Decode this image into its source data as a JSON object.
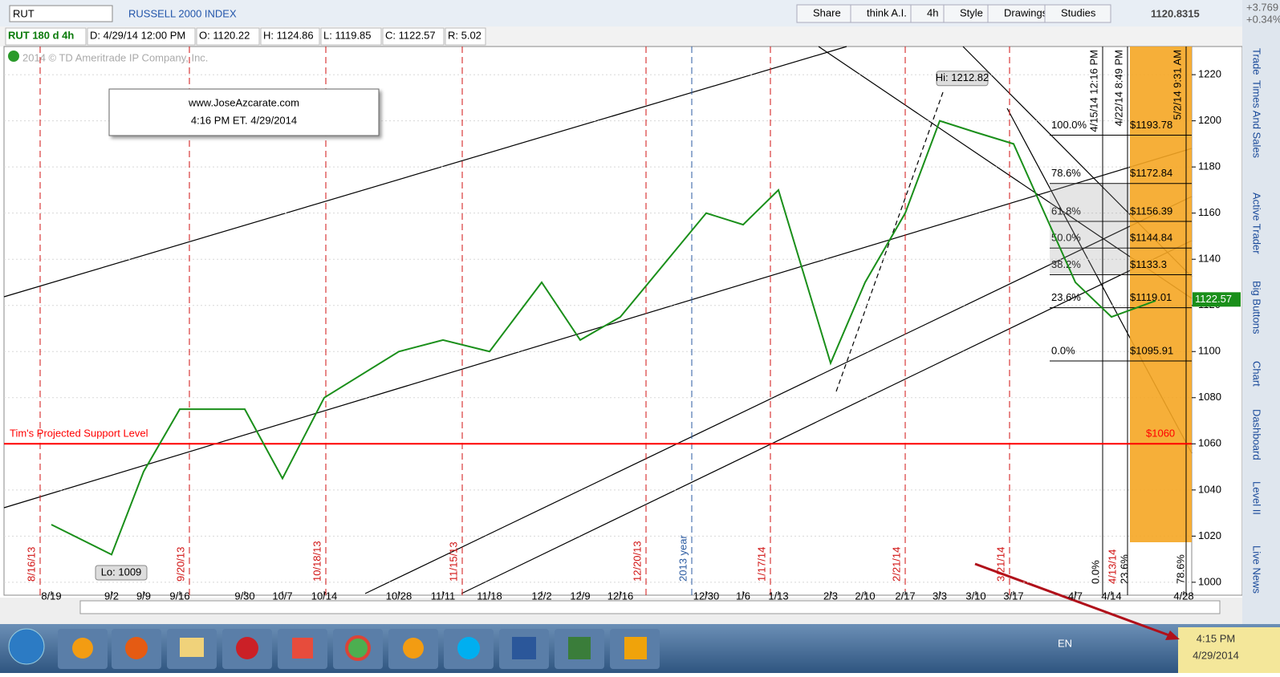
{
  "toolbar": {
    "symbol": "RUT",
    "index_name": "RUSSELL 2000 INDEX",
    "buttons": [
      "Share",
      "think A.I.",
      "4h",
      "Style",
      "Drawings",
      "Studies"
    ],
    "last": "1120.8315",
    "change": "+3.769",
    "change_pct": "+0.34%"
  },
  "info": [
    "RUT 180 d 4h",
    "D: 4/29/14 12:00 PM",
    "O: 1120.22",
    "H: 1124.86",
    "L: 1119.85",
    "C: 1122.57",
    "R: 5.02"
  ],
  "copyright": "2014 © TD Ameritrade IP Company, Inc.",
  "note": [
    "www.JoseAzcarate.com",
    "4:16 PM ET.  4/29/2014"
  ],
  "chart_data": {
    "type": "line",
    "categories": [
      "8/19",
      "9/2",
      "9/9",
      "9/16",
      "9/30",
      "10/7",
      "10/14",
      "10/28",
      "11/11",
      "11/18",
      "12/2",
      "12/9",
      "12/16",
      "12/30",
      "1/6",
      "1/13",
      "2/3",
      "2/10",
      "2/17",
      "3/3",
      "3/10",
      "3/17",
      "4/7",
      "4/14",
      "4/28"
    ],
    "values": [
      1025,
      1012,
      1048,
      1075,
      1075,
      1045,
      1080,
      1100,
      1105,
      1100,
      1130,
      1105,
      1115,
      1160,
      1155,
      1170,
      1095,
      1130,
      1160,
      1200,
      1195,
      1190,
      1130,
      1115,
      1122
    ],
    "color": "#1a8f1a",
    "ylim": [
      994.4,
      1232.2
    ],
    "yticks": [
      1000,
      1020,
      1040,
      1060,
      1080,
      1100,
      1120,
      1140,
      1160,
      1180,
      1200,
      1220
    ],
    "grid": true,
    "last_price": 1122.57,
    "high": {
      "label": "Hi: 1212.82",
      "value": 1212.82
    },
    "low": {
      "label": "Lo: 1009",
      "value": 1009
    },
    "support": {
      "label": "Tim's Projected Support Level",
      "price_label": "$1060",
      "value": 1060,
      "color": "#ff0000"
    },
    "fib": [
      {
        "pct": "100.0%",
        "label": "$1193.78",
        "value": 1193.78
      },
      {
        "pct": "78.6%",
        "label": "$1172.84",
        "value": 1172.84
      },
      {
        "pct": "61.8%",
        "label": "$1156.39",
        "value": 1156.39
      },
      {
        "pct": "50.0%",
        "label": "$1144.84",
        "value": 1144.84
      },
      {
        "pct": "38.2%",
        "label": "$1133.3",
        "value": 1133.3
      },
      {
        "pct": "23.6%",
        "label": "$1119.01",
        "value": 1119.01
      },
      {
        "pct": "0.0%",
        "label": "$1095.91",
        "value": 1095.91
      }
    ],
    "markers": [
      "8/16/13",
      "9/20/13",
      "10/18/13",
      "11/15/13",
      "12/20/13",
      "2013 year",
      "1/17/14",
      "2/21/14",
      "3/21/14"
    ],
    "top_markers": [
      "4/15/14 12:16 PM",
      "4/22/14 8:49 PM",
      "5/2/14 9:31 AM"
    ],
    "bottom_markers": [
      "0.0%",
      "4/13/14",
      "23.6%",
      "78.6%"
    ]
  },
  "side_tabs": [
    "Trade",
    "Times And Sales",
    "Active Trader",
    "Big Buttons",
    "Chart",
    "Dashboard",
    "Level II",
    "Live News"
  ],
  "taskbar": {
    "language": "EN",
    "time": "4:15 PM",
    "date": "4/29/2014"
  }
}
